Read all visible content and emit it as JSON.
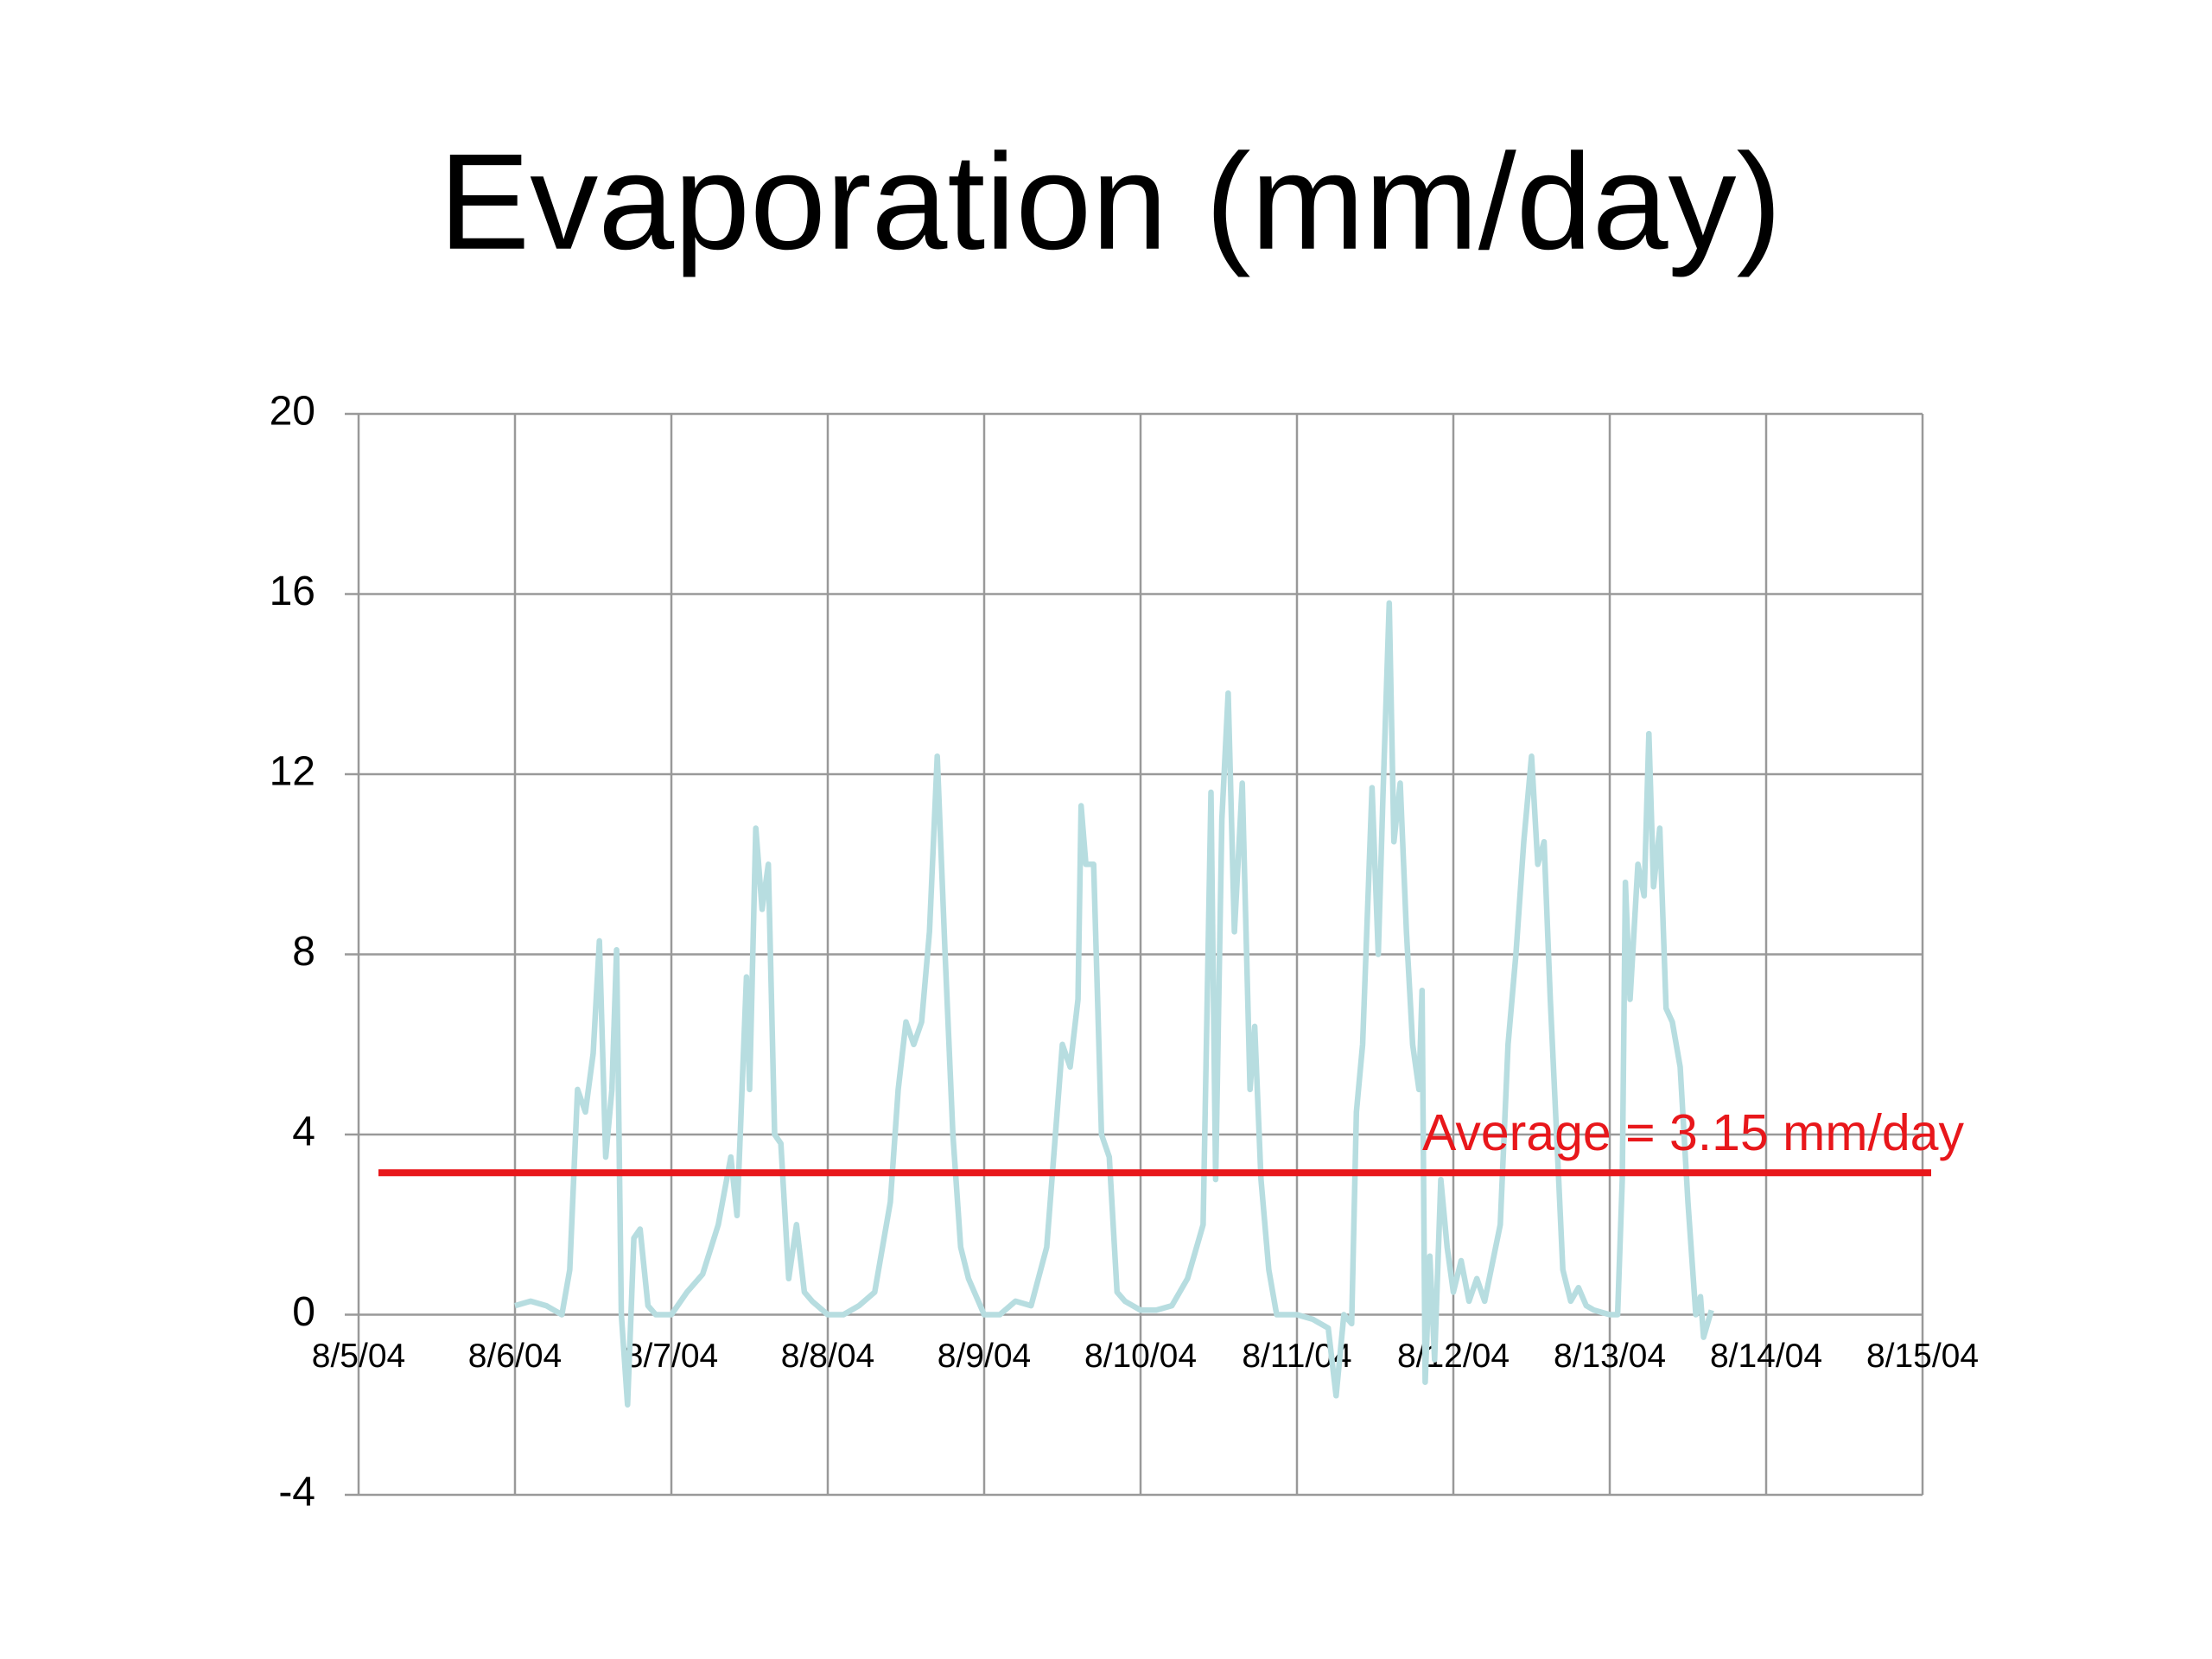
{
  "chart_data": {
    "type": "line",
    "title": "Evaporation (mm/day)",
    "x": [
      1.0,
      1.1,
      1.2,
      1.3,
      1.35,
      1.4,
      1.45,
      1.5,
      1.54,
      1.58,
      1.62,
      1.65,
      1.68,
      1.72,
      1.76,
      1.8,
      1.85,
      1.9,
      2.0,
      2.1,
      2.2,
      2.3,
      2.38,
      2.42,
      2.48,
      2.5,
      2.54,
      2.58,
      2.62,
      2.66,
      2.7,
      2.75,
      2.8,
      2.85,
      2.9,
      3.0,
      3.1,
      3.2,
      3.3,
      3.4,
      3.45,
      3.5,
      3.55,
      3.6,
      3.65,
      3.7,
      3.75,
      3.8,
      3.85,
      3.9,
      4.0,
      4.1,
      4.2,
      4.3,
      4.4,
      4.5,
      4.55,
      4.6,
      4.62,
      4.65,
      4.7,
      4.75,
      4.8,
      4.85,
      4.9,
      5.0,
      5.1,
      5.2,
      5.3,
      5.4,
      5.45,
      5.48,
      5.52,
      5.56,
      5.6,
      5.65,
      5.7,
      5.73,
      5.77,
      5.82,
      5.87,
      6.0,
      6.1,
      6.2,
      6.25,
      6.3,
      6.35,
      6.38,
      6.42,
      6.48,
      6.52,
      6.55,
      6.59,
      6.62,
      6.66,
      6.7,
      6.74,
      6.78,
      6.8,
      6.82,
      6.85,
      6.88,
      6.92,
      6.96,
      7.0,
      7.05,
      7.1,
      7.15,
      7.2,
      7.3,
      7.35,
      7.4,
      7.45,
      7.5,
      7.54,
      7.58,
      7.62,
      7.66,
      7.7,
      7.75,
      7.8,
      7.85,
      7.9,
      8.0,
      8.05,
      8.08,
      8.1,
      8.13,
      8.18,
      8.22,
      8.25,
      8.28,
      8.32,
      8.36,
      8.4,
      8.45,
      8.5,
      8.55,
      8.58,
      8.6,
      8.65
    ],
    "series": [
      {
        "color": "#b7dde0",
        "values": [
          0.2,
          0.3,
          0.2,
          0,
          1,
          5,
          4.5,
          5.8,
          8.3,
          3.5,
          5,
          8.1,
          0,
          -2,
          1.7,
          1.9,
          0.2,
          0,
          0,
          0.5,
          0.9,
          2,
          3.5,
          2.2,
          7.5,
          5,
          10.8,
          9,
          10,
          4,
          3.8,
          0.8,
          2,
          0.5,
          0.3,
          0,
          0,
          0.2,
          0.5,
          2.5,
          5,
          6.5,
          6,
          6.5,
          8.5,
          12.4,
          8,
          4,
          1.5,
          0.8,
          0,
          0,
          0.3,
          0.2,
          1.5,
          6,
          5.5,
          7,
          11.3,
          10,
          10,
          4,
          3.5,
          0.5,
          0.3,
          0.1,
          0.1,
          0.2,
          0.8,
          2,
          11.6,
          3,
          11,
          13.8,
          8.5,
          11.8,
          5,
          6.4,
          3,
          1,
          0,
          0,
          -0.1,
          -0.3,
          -1.8,
          0,
          -0.2,
          4.5,
          6,
          11.7,
          8,
          11.5,
          15.8,
          10.5,
          11.8,
          8.5,
          6,
          5,
          7.2,
          -1.5,
          1.3,
          -1,
          3,
          1.5,
          0.5,
          1.2,
          0.3,
          0.8,
          0.3,
          2,
          6,
          8,
          10.5,
          12.4,
          10,
          10.5,
          7,
          4,
          1,
          0.3,
          0.6,
          0.2,
          0.1,
          0,
          0,
          3,
          9.6,
          7,
          10,
          9.3,
          12.9,
          9.5,
          10.8,
          6.8,
          6.5,
          5.5,
          2.5,
          0,
          0.4,
          -0.5,
          0.1
        ]
      }
    ],
    "average": {
      "label": "Average = 3.15 mm/day",
      "value": 3.15,
      "color": "#e8171b"
    },
    "xlim": [
      0,
      10
    ],
    "xticks": [
      {
        "value": 0,
        "label": "8/5/04"
      },
      {
        "value": 1,
        "label": "8/6/04"
      },
      {
        "value": 2,
        "label": "8/7/04"
      },
      {
        "value": 3,
        "label": "8/8/04"
      },
      {
        "value": 4,
        "label": "8/9/04"
      },
      {
        "value": 5,
        "label": "8/10/04"
      },
      {
        "value": 6,
        "label": "8/11/04"
      },
      {
        "value": 7,
        "label": "8/12/04"
      },
      {
        "value": 8,
        "label": "8/13/04"
      },
      {
        "value": 9,
        "label": "8/14/04"
      },
      {
        "value": 10,
        "label": "8/15/04"
      }
    ],
    "ylim": [
      -4,
      20
    ],
    "yticks": [
      -4,
      0,
      4,
      8,
      12,
      16,
      20
    ],
    "grid": true
  }
}
